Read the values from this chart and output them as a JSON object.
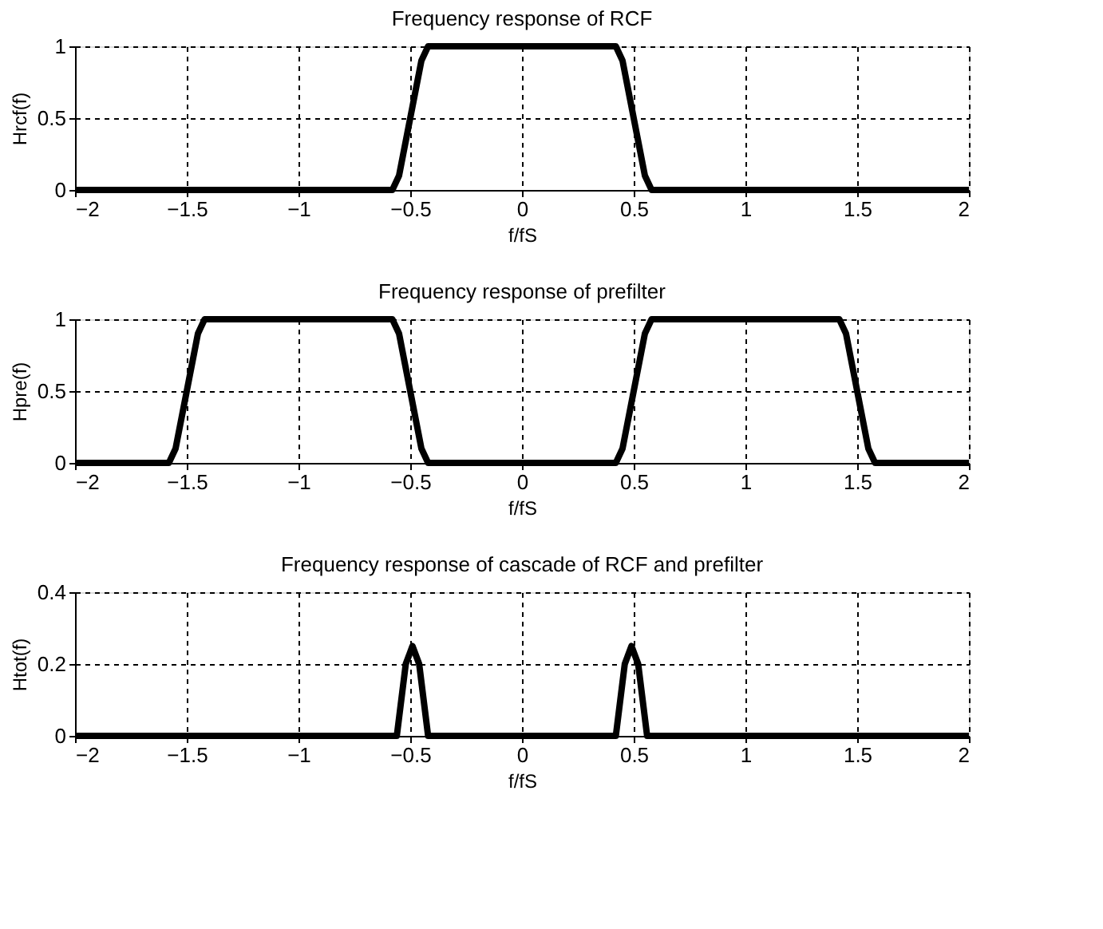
{
  "chart_data": [
    {
      "type": "line",
      "title": "Frequency response of RCF",
      "xlabel": "f/fS",
      "ylabel": "Hrcf(f)",
      "xlim": [
        -2,
        2
      ],
      "xticks": [
        -2,
        -1.5,
        -1,
        -0.5,
        0,
        0.5,
        1,
        1.5,
        2
      ],
      "ylim": [
        0,
        1
      ],
      "yticks": [
        0,
        0.5,
        1
      ],
      "grid": true,
      "legend": false,
      "marker": "none",
      "line_style": "solid",
      "series": [
        {
          "color": "#000000",
          "x": [
            -2,
            -0.58,
            -0.55,
            -0.5,
            -0.45,
            -0.42,
            0.42,
            0.45,
            0.5,
            0.55,
            0.58,
            2
          ],
          "values": [
            0,
            0,
            0.1,
            0.5,
            0.9,
            1,
            1,
            0.9,
            0.5,
            0.1,
            0,
            0
          ]
        }
      ]
    },
    {
      "type": "line",
      "title": "Frequency response of prefilter",
      "xlabel": "f/fS",
      "ylabel": "Hpre(f)",
      "xlim": [
        -2,
        2
      ],
      "xticks": [
        -2,
        -1.5,
        -1,
        -0.5,
        0,
        0.5,
        1,
        1.5,
        2
      ],
      "ylim": [
        0,
        1
      ],
      "yticks": [
        0,
        0.5,
        1
      ],
      "grid": true,
      "legend": false,
      "marker": "none",
      "line_style": "solid",
      "series": [
        {
          "color": "#000000",
          "x": [
            -2,
            -1.58,
            -1.55,
            -1.5,
            -1.45,
            -1.42,
            -0.58,
            -0.55,
            -0.5,
            -0.45,
            -0.42,
            0.42,
            0.45,
            0.5,
            0.55,
            0.58,
            1.42,
            1.45,
            1.5,
            1.55,
            1.58,
            2
          ],
          "values": [
            0,
            0,
            0.1,
            0.5,
            0.9,
            1,
            1,
            0.9,
            0.5,
            0.1,
            0,
            0,
            0.1,
            0.5,
            0.9,
            1,
            1,
            0.9,
            0.5,
            0.1,
            0,
            0
          ]
        }
      ]
    },
    {
      "type": "line",
      "title": "Frequency response of cascade of RCF and prefilter",
      "xlabel": "f/fS",
      "ylabel": "Htot(f)",
      "xlim": [
        -2,
        2
      ],
      "xticks": [
        -2,
        -1.5,
        -1,
        -0.5,
        0,
        0.5,
        1,
        1.5,
        2
      ],
      "ylim": [
        0,
        0.4
      ],
      "yticks": [
        0,
        0.2,
        0.4
      ],
      "grid": true,
      "legend": false,
      "marker": "none",
      "line_style": "solid",
      "series": [
        {
          "color": "#000000",
          "x": [
            -2,
            -0.56,
            -0.52,
            -0.49,
            -0.46,
            -0.42,
            0.42,
            0.46,
            0.49,
            0.52,
            0.56,
            2
          ],
          "values": [
            0,
            0,
            0.2,
            0.25,
            0.2,
            0,
            0,
            0.2,
            0.25,
            0.2,
            0,
            0
          ]
        }
      ]
    }
  ]
}
